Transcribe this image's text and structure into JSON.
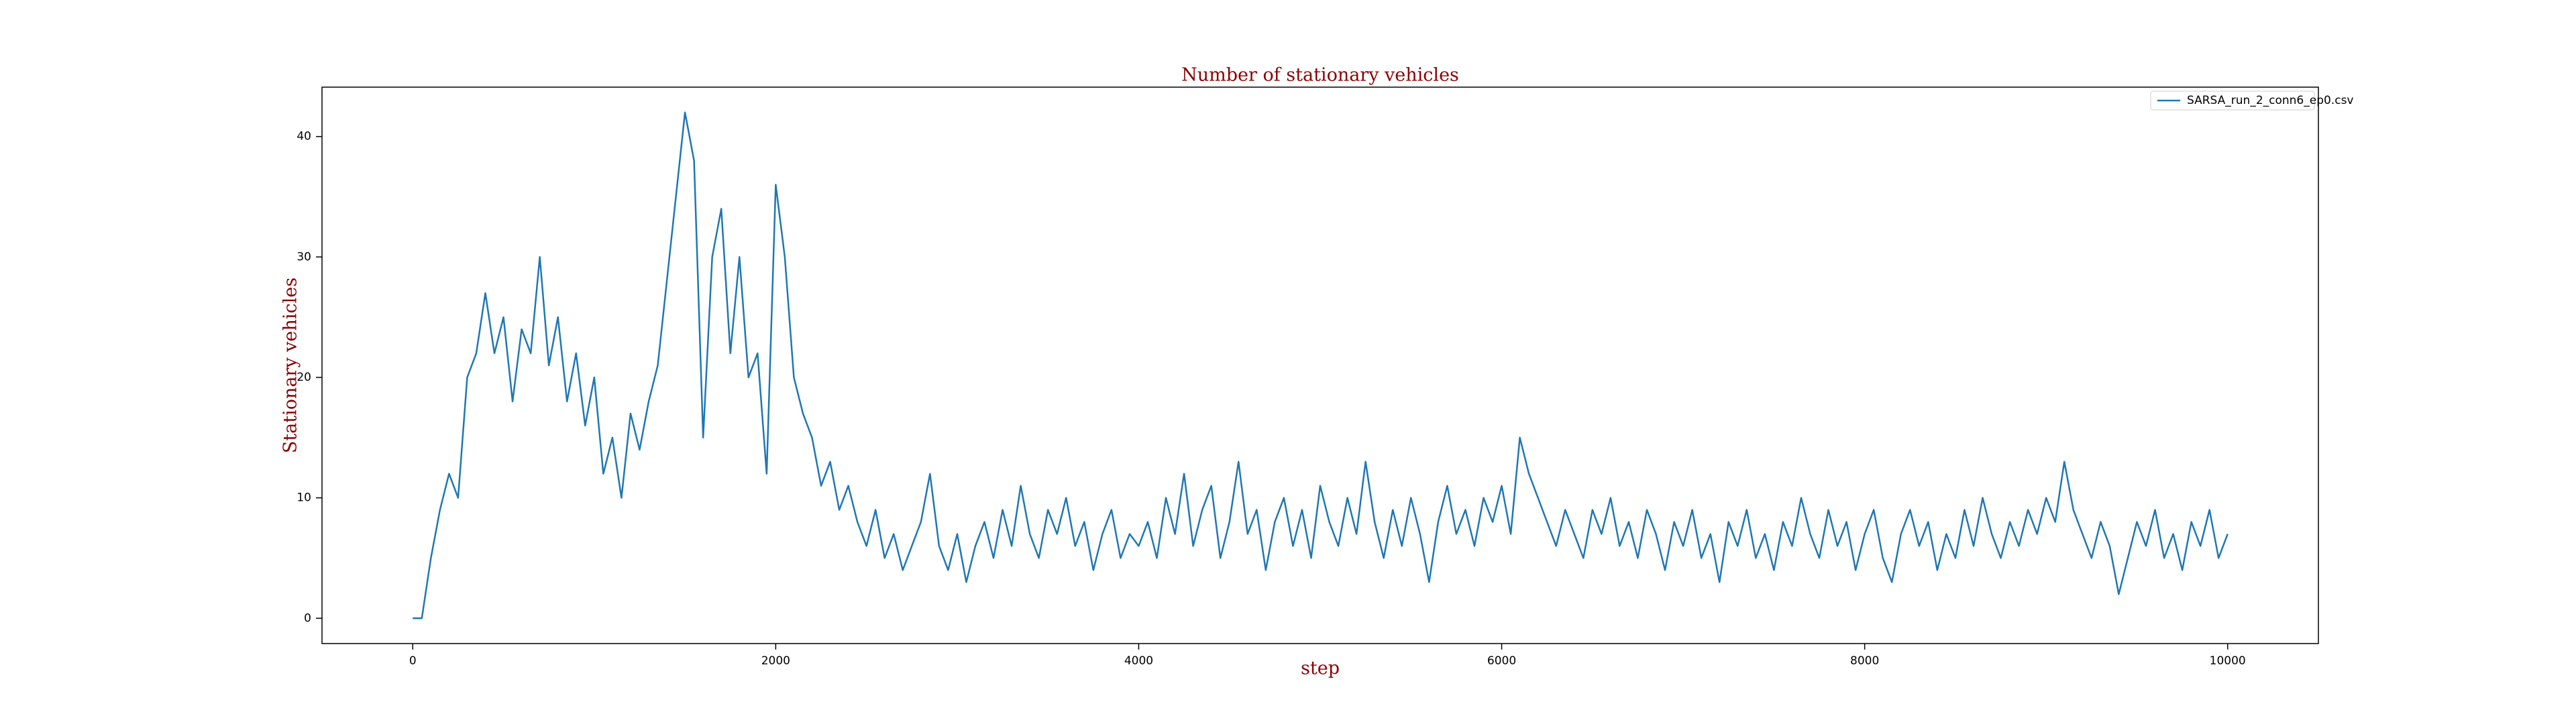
{
  "chart_data": {
    "type": "line",
    "title": "Number of stationary vehicles",
    "x_label": "step",
    "y_label": "Stationary vehicles",
    "x": [
      0,
      50,
      100,
      150,
      200,
      250,
      300,
      350,
      400,
      450,
      500,
      550,
      600,
      650,
      700,
      750,
      800,
      850,
      900,
      950,
      1000,
      1050,
      1100,
      1150,
      1200,
      1250,
      1300,
      1350,
      1400,
      1450,
      1500,
      1550,
      1600,
      1650,
      1700,
      1750,
      1800,
      1850,
      1900,
      1950,
      2000,
      2050,
      2100,
      2150,
      2200,
      2250,
      2300,
      2350,
      2400,
      2450,
      2500,
      2550,
      2600,
      2650,
      2700,
      2750,
      2800,
      2850,
      2900,
      2950,
      3000,
      3050,
      3100,
      3150,
      3200,
      3250,
      3300,
      3350,
      3400,
      3450,
      3500,
      3550,
      3600,
      3650,
      3700,
      3750,
      3800,
      3850,
      3900,
      3950,
      4000,
      4050,
      4100,
      4150,
      4200,
      4250,
      4300,
      4350,
      4400,
      4450,
      4500,
      4550,
      4600,
      4650,
      4700,
      4750,
      4800,
      4850,
      4900,
      4950,
      5000,
      5050,
      5100,
      5150,
      5200,
      5250,
      5300,
      5350,
      5400,
      5450,
      5500,
      5550,
      5600,
      5650,
      5700,
      5750,
      5800,
      5850,
      5900,
      5950,
      6000,
      6050,
      6100,
      6150,
      6200,
      6250,
      6300,
      6350,
      6400,
      6450,
      6500,
      6550,
      6600,
      6650,
      6700,
      6750,
      6800,
      6850,
      6900,
      6950,
      7000,
      7050,
      7100,
      7150,
      7200,
      7250,
      7300,
      7350,
      7400,
      7450,
      7500,
      7550,
      7600,
      7650,
      7700,
      7750,
      7800,
      7850,
      7900,
      7950,
      8000,
      8050,
      8100,
      8150,
      8200,
      8250,
      8300,
      8350,
      8400,
      8450,
      8500,
      8550,
      8600,
      8650,
      8700,
      8750,
      8800,
      8850,
      8900,
      8950,
      9000,
      9050,
      9100,
      9150,
      9200,
      9250,
      9300,
      9350,
      9400,
      9450,
      9500,
      9550,
      9600,
      9650,
      9700,
      9750,
      9800,
      9850,
      9900,
      9950,
      10000
    ],
    "series": [
      {
        "name": "SARSA_run_2_conn6_ep0.csv",
        "color": "#1f77b4",
        "values": [
          0,
          0,
          5,
          9,
          12,
          10,
          20,
          22,
          27,
          22,
          25,
          18,
          24,
          22,
          30,
          21,
          25,
          18,
          22,
          16,
          20,
          12,
          15,
          10,
          17,
          14,
          18,
          21,
          28,
          35,
          42,
          38,
          15,
          30,
          34,
          22,
          30,
          20,
          22,
          12,
          36,
          30,
          20,
          17,
          15,
          11,
          13,
          9,
          11,
          8,
          6,
          9,
          5,
          7,
          4,
          6,
          8,
          12,
          6,
          4,
          7,
          3,
          6,
          8,
          5,
          9,
          6,
          11,
          7,
          5,
          9,
          7,
          10,
          6,
          8,
          4,
          7,
          9,
          5,
          7,
          6,
          8,
          5,
          10,
          7,
          12,
          6,
          9,
          11,
          5,
          8,
          13,
          7,
          9,
          4,
          8,
          10,
          6,
          9,
          5,
          11,
          8,
          6,
          10,
          7,
          13,
          8,
          5,
          9,
          6,
          10,
          7,
          3,
          8,
          11,
          7,
          9,
          6,
          10,
          8,
          11,
          7,
          15,
          12,
          10,
          8,
          6,
          9,
          7,
          5,
          9,
          7,
          10,
          6,
          8,
          5,
          9,
          7,
          4,
          8,
          6,
          9,
          5,
          7,
          3,
          8,
          6,
          9,
          5,
          7,
          4,
          8,
          6,
          10,
          7,
          5,
          9,
          6,
          8,
          4,
          7,
          9,
          5,
          3,
          7,
          9,
          6,
          8,
          4,
          7,
          5,
          9,
          6,
          10,
          7,
          5,
          8,
          6,
          9,
          7,
          10,
          8,
          13,
          9,
          7,
          5,
          8,
          6,
          2,
          5,
          8,
          6,
          9,
          5,
          7,
          4,
          8,
          6,
          9,
          5,
          7
        ]
      }
    ],
    "xlim": [
      -500,
      10500
    ],
    "xticks": [
      0,
      2000,
      4000,
      6000,
      8000,
      10000
    ],
    "ylim": [
      -2.1,
      44.1
    ],
    "yticks": [
      0,
      10,
      20,
      30,
      40
    ],
    "grid": false,
    "legend": "upper right"
  }
}
